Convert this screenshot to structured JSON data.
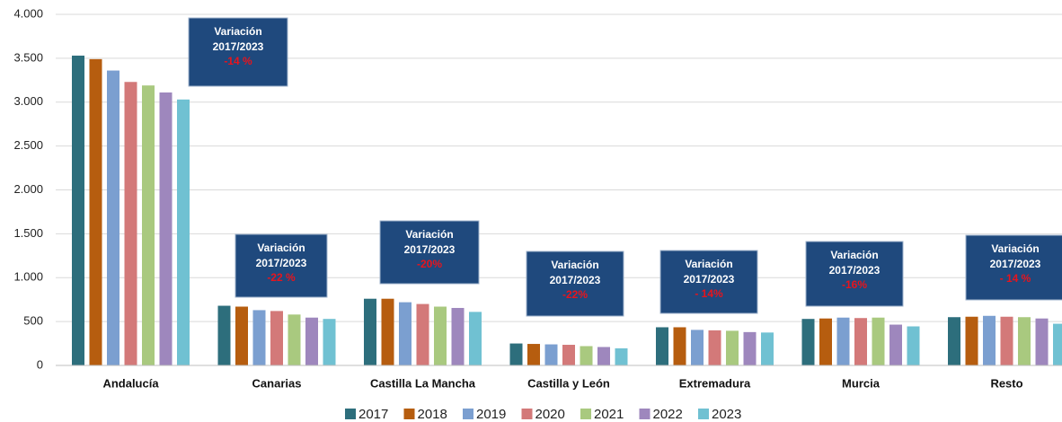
{
  "chart_data": {
    "type": "bar",
    "categories": [
      "Andalucía",
      "Canarias",
      "Castilla La Mancha",
      "Castilla y León",
      "Extremadura",
      "Murcia",
      "Resto"
    ],
    "series": [
      {
        "name": "2017",
        "color": "#2d6e7c",
        "values": [
          3530,
          680,
          760,
          250,
          435,
          530,
          550
        ]
      },
      {
        "name": "2018",
        "color": "#b65d0f",
        "values": [
          3490,
          670,
          760,
          245,
          435,
          535,
          555
        ]
      },
      {
        "name": "2019",
        "color": "#7b9fd0",
        "values": [
          3360,
          630,
          720,
          240,
          405,
          545,
          565
        ]
      },
      {
        "name": "2020",
        "color": "#d37979",
        "values": [
          3230,
          620,
          700,
          235,
          400,
          540,
          555
        ]
      },
      {
        "name": "2021",
        "color": "#a9c97f",
        "values": [
          3190,
          580,
          670,
          220,
          395,
          545,
          550
        ]
      },
      {
        "name": "2022",
        "color": "#9e87bd",
        "values": [
          3110,
          545,
          655,
          210,
          380,
          465,
          535
        ]
      },
      {
        "name": "2023",
        "color": "#70c1d2",
        "values": [
          3030,
          530,
          610,
          195,
          375,
          445,
          475
        ]
      }
    ],
    "ylim": [
      0,
      4000
    ],
    "yticks": [
      0,
      500,
      {
        "value": 1000,
        "label": "1.000"
      },
      {
        "value": 1500,
        "label": "1.500"
      },
      {
        "value": 2000,
        "label": "2.000"
      },
      {
        "value": 2500,
        "label": "2.500"
      },
      {
        "value": 3000,
        "label": "3.000"
      },
      {
        "value": 3500,
        "label": "3.500"
      },
      {
        "value": 4000,
        "label": "4.000"
      }
    ],
    "grid": true,
    "legend": "bottom",
    "annotations": [
      {
        "title": "Variación",
        "period": "2017/2023",
        "change": "-14 %"
      },
      {
        "title": "Variación",
        "period": "2017/2023",
        "change": "-22 %"
      },
      {
        "title": "Variación",
        "period": "2017/2023",
        "change": "-20%"
      },
      {
        "title": "Variación",
        "period": "2017/2023",
        "change": "-22%"
      },
      {
        "title": "Variación",
        "period": "2017/2023",
        "change": "- 14%"
      },
      {
        "title": "Variación",
        "period": "2017/2023",
        "change": "-16%"
      },
      {
        "title": "Variación",
        "period": "2017/2023",
        "change": "- 14 %"
      }
    ]
  }
}
